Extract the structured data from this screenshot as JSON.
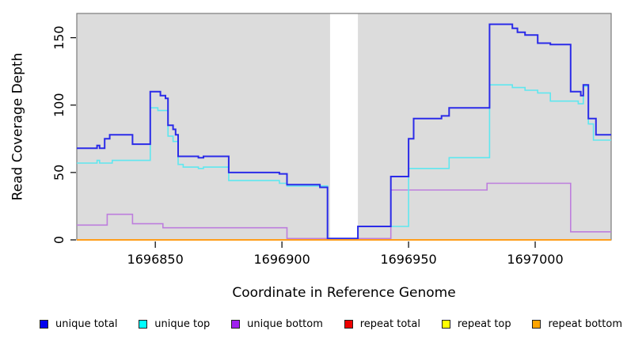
{
  "chart_data": {
    "type": "line",
    "step": true,
    "title": "",
    "xlabel": "Coordinate in Reference Genome",
    "ylabel": "Read Coverage Depth",
    "xlim": [
      1696819,
      1697030
    ],
    "ylim": [
      0,
      168
    ],
    "x_ticks": [
      1696850,
      1696900,
      1696950,
      1697000
    ],
    "y_ticks": [
      0,
      50,
      100,
      150
    ],
    "grid": false,
    "plot_background": "#dcdcdc",
    "border_color": "#7a7a7a",
    "gap_region": {
      "x_start": 1696919,
      "x_end": 1696930,
      "color": "#ffffff"
    },
    "legend_position": "bottom",
    "draw_order": [
      "repeat top",
      "repeat total",
      "unique bottom",
      "unique top",
      "unique total",
      "repeat bottom"
    ],
    "series": [
      {
        "name": "unique total",
        "legend_color": "#0000EE",
        "line_color": "#2B2BE8",
        "line_width": 2,
        "points": [
          [
            1696819,
            68
          ],
          [
            1696827,
            70
          ],
          [
            1696828,
            68
          ],
          [
            1696830,
            75
          ],
          [
            1696832,
            78
          ],
          [
            1696841,
            71
          ],
          [
            1696848,
            110
          ],
          [
            1696852,
            107
          ],
          [
            1696854,
            105
          ],
          [
            1696855,
            85
          ],
          [
            1696857,
            82
          ],
          [
            1696858,
            78
          ],
          [
            1696859,
            62
          ],
          [
            1696867,
            61
          ],
          [
            1696869,
            62
          ],
          [
            1696879,
            50
          ],
          [
            1696899,
            49
          ],
          [
            1696902,
            41
          ],
          [
            1696915,
            39
          ],
          [
            1696918,
            1
          ],
          [
            1696930,
            10
          ],
          [
            1696943,
            47
          ],
          [
            1696950,
            75
          ],
          [
            1696952,
            90
          ],
          [
            1696963,
            92
          ],
          [
            1696966,
            98
          ],
          [
            1696982,
            160
          ],
          [
            1696991,
            157
          ],
          [
            1696993,
            154
          ],
          [
            1696996,
            152
          ],
          [
            1697001,
            146
          ],
          [
            1697006,
            145
          ],
          [
            1697014,
            110
          ],
          [
            1697018,
            107
          ],
          [
            1697019,
            115
          ],
          [
            1697021,
            90
          ],
          [
            1697024,
            78
          ],
          [
            1697030,
            78
          ]
        ]
      },
      {
        "name": "unique top",
        "legend_color": "#00FFFF",
        "line_color": "#5FE7EF",
        "line_width": 1.6,
        "points": [
          [
            1696819,
            57
          ],
          [
            1696827,
            59
          ],
          [
            1696828,
            57
          ],
          [
            1696833,
            59
          ],
          [
            1696848,
            98
          ],
          [
            1696851,
            96
          ],
          [
            1696855,
            77
          ],
          [
            1696857,
            73
          ],
          [
            1696859,
            56
          ],
          [
            1696861,
            54
          ],
          [
            1696867,
            53
          ],
          [
            1696869,
            54
          ],
          [
            1696879,
            44
          ],
          [
            1696899,
            42
          ],
          [
            1696902,
            40
          ],
          [
            1696918,
            0
          ],
          [
            1696930,
            10
          ],
          [
            1696950,
            53
          ],
          [
            1696966,
            61
          ],
          [
            1696982,
            115
          ],
          [
            1696991,
            113
          ],
          [
            1696996,
            111
          ],
          [
            1697001,
            109
          ],
          [
            1697006,
            103
          ],
          [
            1697017,
            101
          ],
          [
            1697019,
            114
          ],
          [
            1697021,
            86
          ],
          [
            1697023,
            74
          ],
          [
            1697030,
            74
          ]
        ]
      },
      {
        "name": "unique bottom",
        "legend_color": "#A020F0",
        "line_color": "#BD7EDD",
        "line_width": 1.6,
        "points": [
          [
            1696819,
            11
          ],
          [
            1696831,
            19
          ],
          [
            1696841,
            12
          ],
          [
            1696853,
            9
          ],
          [
            1696902,
            1
          ],
          [
            1696943,
            37
          ],
          [
            1696981,
            42
          ],
          [
            1697014,
            6
          ],
          [
            1697030,
            6
          ]
        ]
      },
      {
        "name": "repeat total",
        "legend_color": "#EE0000",
        "line_color": "#DD3344",
        "line_width": 1.5,
        "points": [
          [
            1696819,
            0
          ],
          [
            1697030,
            0
          ]
        ]
      },
      {
        "name": "repeat top",
        "legend_color": "#FFFF00",
        "line_color": "#FFFF00",
        "line_width": 1.5,
        "points": [
          [
            1696819,
            0
          ],
          [
            1697030,
            0
          ]
        ]
      },
      {
        "name": "repeat bottom",
        "legend_color": "#FFA500",
        "line_color": "#FF9E1B",
        "line_width": 2,
        "points": [
          [
            1696819,
            0
          ],
          [
            1697030,
            0
          ]
        ]
      }
    ]
  },
  "axes": {
    "y_title": "Read Coverage Depth",
    "x_title": "Coordinate in Reference Genome"
  }
}
